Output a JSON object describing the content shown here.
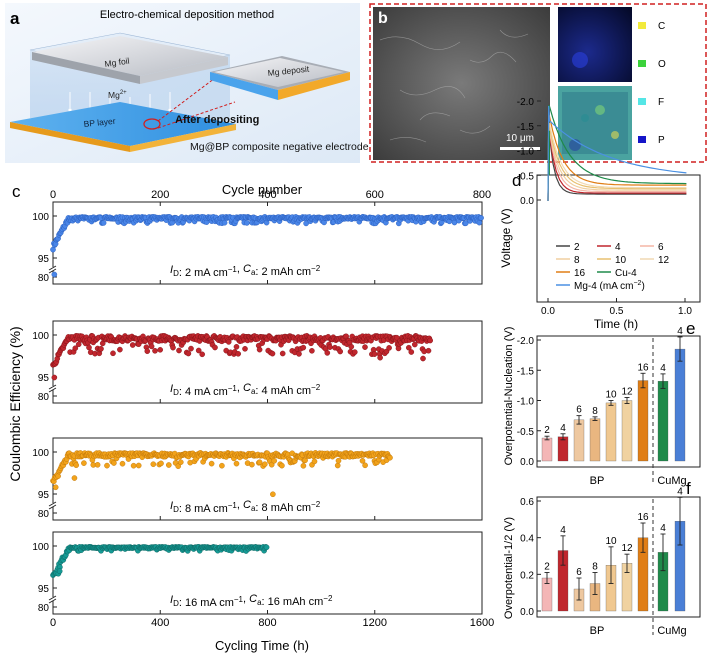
{
  "panel_labels": {
    "a": "a",
    "b": "b",
    "c": "c",
    "d": "d",
    "e": "e",
    "f": "f"
  },
  "panel_a": {
    "title": "Electro-chemical deposition method",
    "mg_foil": "Mg foil",
    "mg_ion": "Mg",
    "mg_ion_charge": "2+",
    "bp_layer": "BP layer",
    "after": "After depositing",
    "deposit": "Mg deposit",
    "caption": "Mg@BP composite negative electrode"
  },
  "panel_b": {
    "scalebar": "10 μm",
    "legend": [
      {
        "label": "C",
        "color": "#f2ea3c"
      },
      {
        "label": "O",
        "color": "#3cd23c"
      },
      {
        "label": "F",
        "color": "#55e6e6"
      },
      {
        "label": "P",
        "color": "#1515c8"
      }
    ]
  },
  "panel_c": {
    "top_axis_label": "Cycle number",
    "bottom_axis_label": "Cycling Time (h)",
    "y_axis_label": "Coulombic Efficiency (%)",
    "top_ticks": [
      "0",
      "200",
      "400",
      "600",
      "800"
    ],
    "bottom_ticks": [
      "0",
      "400",
      "800",
      "1200",
      "1600"
    ],
    "y_ticks": [
      "100",
      "95",
      "80"
    ],
    "subplots": [
      {
        "id": "2",
        "label_pre": "I",
        "sub1": "D",
        "label_mid": ": 2 mA cm",
        "sup1": "−1",
        "label_mid2": ", C",
        "sub2": "a",
        "label_end": ": 2 mAh cm",
        "sup2": "−2",
        "color": "#4a86e8",
        "dark": "#2458b8",
        "end_h": 1600
      },
      {
        "id": "4",
        "label_pre": "I",
        "sub1": "D",
        "label_mid": ": 4 mA cm",
        "sup1": "−1",
        "label_mid2": ", C",
        "sub2": "a",
        "label_end": ": 4 mAh cm",
        "sup2": "−2",
        "color": "#c0262d",
        "dark": "#7a0f14",
        "end_h": 1410
      },
      {
        "id": "8",
        "label_pre": "I",
        "sub1": "D",
        "label_mid": ": 8 mA cm",
        "sup1": "−1",
        "label_mid2": ", C",
        "sub2": "a",
        "label_end": ": 8 mAh cm",
        "sup2": "−2",
        "color": "#f2a31b",
        "dark": "#b86e05",
        "end_h": 1260
      },
      {
        "id": "16",
        "label_pre": "I",
        "sub1": "D",
        "label_mid": ": 16 mA cm",
        "sup1": "−1",
        "label_mid2": ", C",
        "sub2": "a",
        "label_end": ": 16 mAh cm",
        "sup2": "−2",
        "color": "#169a95",
        "dark": "#0b5f5b",
        "end_h": 800
      }
    ]
  },
  "panel_d": {
    "y_axis_label": "Voltage (V)",
    "x_axis_label": "Time (h)",
    "y_ticks": [
      "0.0",
      "-0.5",
      "-1.0",
      "-1.5",
      "-2.0"
    ],
    "x_ticks": [
      "0.0",
      "0.5",
      "1.0"
    ],
    "legend": [
      {
        "label": "2",
        "color": "#444444"
      },
      {
        "label": "4",
        "color": "#c0262d"
      },
      {
        "label": "6",
        "color": "#f4b6a6"
      },
      {
        "label": "8",
        "color": "#f0cfa0"
      },
      {
        "label": "10",
        "color": "#e8c070"
      },
      {
        "label": "12",
        "color": "#f1d9b2"
      },
      {
        "label": "16",
        "color": "#e07e16"
      },
      {
        "label": "Cu-4",
        "color": "#1f8a4a"
      },
      {
        "label": "Mg-4 (mA cm",
        "color": "#4a90e2"
      }
    ],
    "legend_last_sup": "−2",
    "legend_last_close": ")"
  },
  "panel_e": {
    "y_axis_label": "Overpotential-Nucleation (V)",
    "y_ticks": [
      "0.0",
      "-0.5",
      "-1.0",
      "-1.5",
      "-2.0"
    ],
    "group_bp": "BP",
    "group_cumg": "CuMg",
    "bars": [
      {
        "label": "2",
        "value": 0.38,
        "err": 0.03,
        "color": "#f4b6b6"
      },
      {
        "label": "4",
        "value": 0.4,
        "err": 0.05,
        "color": "#c0262d"
      },
      {
        "label": "6",
        "value": 0.68,
        "err": 0.07,
        "color": "#eec8a0"
      },
      {
        "label": "8",
        "value": 0.7,
        "err": 0.03,
        "color": "#e9b680"
      },
      {
        "label": "10",
        "value": 0.96,
        "err": 0.04,
        "color": "#f0c890"
      },
      {
        "label": "12",
        "value": 1.0,
        "err": 0.05,
        "color": "#f0d2a0"
      },
      {
        "label": "16",
        "value": 1.33,
        "err": 0.12,
        "color": "#e07e16"
      },
      {
        "label": "4",
        "value": 1.32,
        "err": 0.12,
        "color": "#1f8a4a"
      },
      {
        "label": "4",
        "value": 1.85,
        "err": 0.2,
        "color": "#4a7fd6"
      }
    ]
  },
  "panel_f": {
    "y_axis_label": "Overpotential-1/2 (V)",
    "y_ticks": [
      "0.0",
      "0.2",
      "0.4",
      "0.6"
    ],
    "group_bp": "BP",
    "group_cumg": "CuMg",
    "bars": [
      {
        "label": "2",
        "value": 0.18,
        "err": 0.03,
        "color": "#f4b6b6"
      },
      {
        "label": "4",
        "value": 0.33,
        "err": 0.08,
        "color": "#c0262d"
      },
      {
        "label": "6",
        "value": 0.12,
        "err": 0.06,
        "color": "#eec8a0"
      },
      {
        "label": "8",
        "value": 0.15,
        "err": 0.06,
        "color": "#e9b680"
      },
      {
        "label": "10",
        "value": 0.25,
        "err": 0.1,
        "color": "#f0c890"
      },
      {
        "label": "12",
        "value": 0.26,
        "err": 0.05,
        "color": "#f0d2a0"
      },
      {
        "label": "16",
        "value": 0.4,
        "err": 0.08,
        "color": "#e07e16"
      },
      {
        "label": "4",
        "value": 0.32,
        "err": 0.1,
        "color": "#1f8a4a"
      },
      {
        "label": "4",
        "value": 0.49,
        "err": 0.13,
        "color": "#4a7fd6"
      }
    ]
  }
}
